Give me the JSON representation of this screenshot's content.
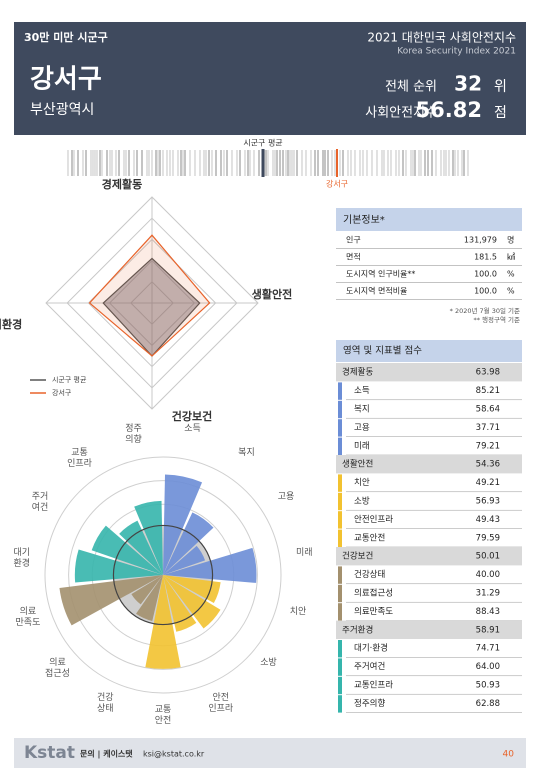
{
  "header": {
    "category": "30만 미만 시군구",
    "title_kr": "2021 대한민국 사회안전지수",
    "title_en": "Korea Security Index 2021",
    "region": "강서구",
    "province": "부산광역시",
    "rank_label": "전체 순위",
    "rank": "32",
    "rank_unit": "위",
    "score_label": "사회안전지수",
    "score": "56.82",
    "score_unit": "점"
  },
  "barcode": {
    "average_label": "시군구 평균",
    "region_label": "강서구"
  },
  "chart_data": [
    {
      "type": "radar",
      "categories": [
        "경제활동",
        "생활안전",
        "건강보건",
        "주거환경"
      ],
      "rlim": [
        0,
        100
      ],
      "rticks": [
        20,
        40,
        60,
        80,
        100
      ],
      "series": [
        {
          "name": "시군구 평균",
          "color": "#555555",
          "values": [
            42,
            45,
            50,
            46
          ]
        },
        {
          "name": "강서구",
          "color": "#e8632a",
          "values": [
            63.98,
            54.36,
            50.01,
            58.91
          ]
        }
      ]
    },
    {
      "type": "rose",
      "categories": [
        "소득",
        "복지",
        "고용",
        "미래",
        "치안",
        "소방",
        "안전\n인프라",
        "교통\n안전",
        "건강\n상태",
        "의료\n접근성",
        "의료\n만족도",
        "대기\n환경",
        "주거\n여건",
        "교통\n인프라",
        "정주\n의향"
      ],
      "values": [
        85.21,
        58.64,
        37.71,
        79.21,
        49.21,
        56.93,
        49.43,
        79.59,
        40.0,
        31.29,
        88.43,
        74.71,
        64.0,
        50.93,
        62.88
      ],
      "colors": [
        "#6b8dd6",
        "#6b8dd6",
        "#6b8dd6",
        "#6b8dd6",
        "#f2c230",
        "#f2c230",
        "#f2c230",
        "#f2c230",
        "#a3906e",
        "#a3906e",
        "#a3906e",
        "#35b5ac",
        "#35b5ac",
        "#35b5ac",
        "#35b5ac"
      ],
      "rlim": [
        0,
        100
      ],
      "rticks": [
        20,
        40,
        60,
        80,
        100
      ]
    }
  ],
  "basic_info": {
    "title": "기본정보*",
    "rows": [
      {
        "label": "인구",
        "value": "131,979",
        "unit": "명"
      },
      {
        "label": "면적",
        "value": "181.5",
        "unit": "㎢"
      },
      {
        "label": "도시지역 인구비율**",
        "value": "100.0",
        "unit": "%"
      },
      {
        "label": "도시지역 면적비율",
        "value": "100.0",
        "unit": "%"
      }
    ],
    "notes": [
      "* 2020년 7월 30일 기준",
      "** 행정구역 기준"
    ]
  },
  "scores": {
    "title": "영역 및 지표별 점수",
    "groups": [
      {
        "name": "경제활동",
        "score": "63.98",
        "color": "#6b8dd6",
        "items": [
          {
            "name": "소득",
            "score": "85.21"
          },
          {
            "name": "복지",
            "score": "58.64"
          },
          {
            "name": "고용",
            "score": "37.71"
          },
          {
            "name": "미래",
            "score": "79.21"
          }
        ]
      },
      {
        "name": "생활안전",
        "score": "54.36",
        "color": "#f2c230",
        "items": [
          {
            "name": "치안",
            "score": "49.21"
          },
          {
            "name": "소방",
            "score": "56.93"
          },
          {
            "name": "안전인프라",
            "score": "49.43"
          },
          {
            "name": "교통안전",
            "score": "79.59"
          }
        ]
      },
      {
        "name": "건강보건",
        "score": "50.01",
        "color": "#a3906e",
        "items": [
          {
            "name": "건강상태",
            "score": "40.00"
          },
          {
            "name": "의료접근성",
            "score": "31.29"
          },
          {
            "name": "의료만족도",
            "score": "88.43"
          }
        ]
      },
      {
        "name": "주거환경",
        "score": "58.91",
        "color": "#35b5ac",
        "items": [
          {
            "name": "대기·환경",
            "score": "74.71"
          },
          {
            "name": "주거여건",
            "score": "64.00"
          },
          {
            "name": "교통인프라",
            "score": "50.93"
          },
          {
            "name": "정주의향",
            "score": "62.88"
          }
        ]
      }
    ]
  },
  "footer": {
    "logo": "Kstat",
    "contact": "문의 | 케이스탯",
    "email": "ksi@kstat.co.kr",
    "page": "40"
  }
}
